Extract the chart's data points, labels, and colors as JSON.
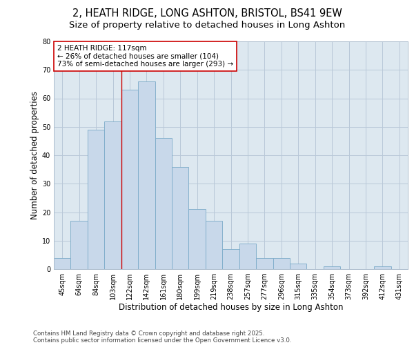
{
  "title_line1": "2, HEATH RIDGE, LONG ASHTON, BRISTOL, BS41 9EW",
  "title_line2": "Size of property relative to detached houses in Long Ashton",
  "xlabel": "Distribution of detached houses by size in Long Ashton",
  "ylabel": "Number of detached properties",
  "categories": [
    "45sqm",
    "64sqm",
    "84sqm",
    "103sqm",
    "122sqm",
    "142sqm",
    "161sqm",
    "180sqm",
    "199sqm",
    "219sqm",
    "238sqm",
    "257sqm",
    "277sqm",
    "296sqm",
    "315sqm",
    "335sqm",
    "354sqm",
    "373sqm",
    "392sqm",
    "412sqm",
    "431sqm"
  ],
  "values": [
    4,
    17,
    49,
    52,
    63,
    66,
    46,
    36,
    21,
    17,
    7,
    9,
    4,
    4,
    2,
    0,
    1,
    0,
    0,
    1,
    0
  ],
  "bar_color": "#c8d8ea",
  "bar_edge_color": "#7aaac8",
  "grid_color": "#b8c8d8",
  "background_color": "#dde8f0",
  "vline_x_index": 4,
  "vline_color": "#cc0000",
  "annotation_text": "2 HEATH RIDGE: 117sqm\n← 26% of detached houses are smaller (104)\n73% of semi-detached houses are larger (293) →",
  "annotation_box_color": "#ffffff",
  "annotation_box_edge": "#cc0000",
  "ylim": [
    0,
    80
  ],
  "yticks": [
    0,
    10,
    20,
    30,
    40,
    50,
    60,
    70,
    80
  ],
  "footnote_line1": "Contains HM Land Registry data © Crown copyright and database right 2025.",
  "footnote_line2": "Contains public sector information licensed under the Open Government Licence v3.0.",
  "title_fontsize": 10.5,
  "subtitle_fontsize": 9.5,
  "axis_label_fontsize": 8.5,
  "tick_fontsize": 7,
  "annotation_fontsize": 7.5,
  "footnote_fontsize": 6.2
}
